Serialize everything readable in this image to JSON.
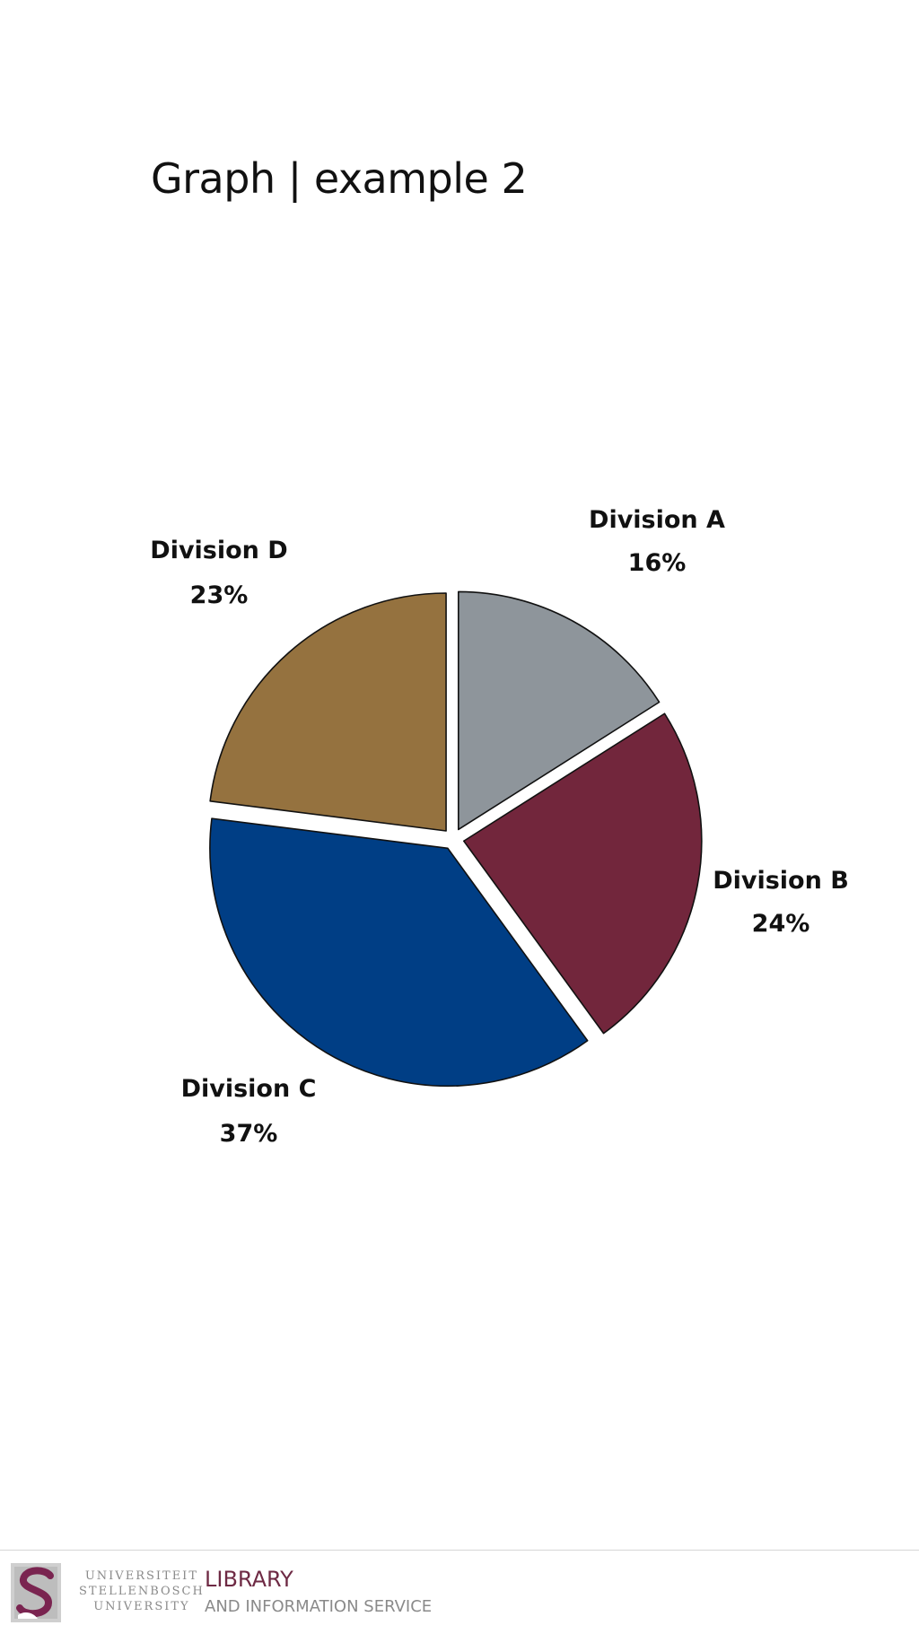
{
  "slide": {
    "title": "Graph | example 2"
  },
  "chart_data": {
    "type": "pie",
    "title": "",
    "categories": [
      "Division A",
      "Division B",
      "Division C",
      "Division D"
    ],
    "values": [
      16,
      24,
      37,
      23
    ],
    "value_labels": [
      "16%",
      "24%",
      "37%",
      "23%"
    ],
    "start": "12 o'clock",
    "direction": "clockwise",
    "exploded": true,
    "colors": [
      "#8e959b",
      "#72263c",
      "#003e85",
      "#95723f"
    ],
    "edge_color": "#111111"
  },
  "footer": {
    "university_lines": [
      "UNIVERSITEIT",
      "STELLENBOSCH",
      "UNIVERSITY"
    ],
    "library_title": "LIBRARY",
    "library_subtitle": "AND INFORMATION SERVICE",
    "logo_icon": "stellenbosch-s-logo-icon",
    "brand_color": "#6e2a44"
  }
}
